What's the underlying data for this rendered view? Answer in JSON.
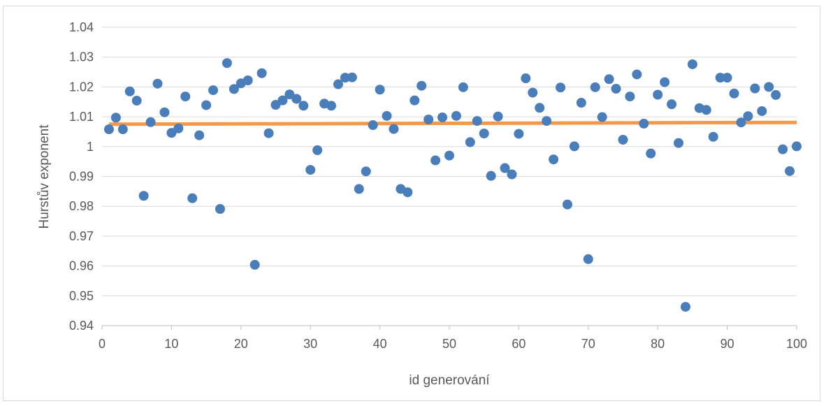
{
  "chart_data": {
    "type": "scatter",
    "xlabel": "id generování",
    "ylabel": "Hurstův exponent",
    "xlim": [
      0,
      100
    ],
    "ylim": [
      0.94,
      1.04
    ],
    "x_ticks": [
      "0",
      "10",
      "20",
      "30",
      "40",
      "50",
      "60",
      "70",
      "80",
      "90",
      "100"
    ],
    "y_ticks": [
      "0.94",
      "0.95",
      "0.96",
      "0.97",
      "0.98",
      "0.99",
      "1",
      "1.01",
      "1.02",
      "1.03",
      "1.04"
    ],
    "grid": "horizontal",
    "colors": {
      "points": "#4a7ebb",
      "trendline": "#f4984a",
      "grid": "#d9d9d9",
      "axis": "#bfbfbf",
      "text": "#595959"
    },
    "series": [
      {
        "marker": "circle",
        "x": [
          1,
          2,
          3,
          4,
          5,
          6,
          7,
          8,
          9,
          10,
          11,
          12,
          13,
          14,
          15,
          16,
          17,
          18,
          19,
          20,
          21,
          22,
          23,
          24,
          25,
          26,
          27,
          28,
          29,
          30,
          31,
          32,
          33,
          34,
          35,
          36,
          37,
          38,
          39,
          40,
          41,
          42,
          43,
          44,
          45,
          46,
          47,
          48,
          49,
          50,
          51,
          52,
          53,
          54,
          55,
          56,
          57,
          58,
          59,
          60,
          61,
          62,
          63,
          64,
          65,
          66,
          67,
          68,
          69,
          70,
          71,
          72,
          73,
          74,
          75,
          76,
          77,
          78,
          79,
          80,
          81,
          82,
          83,
          84,
          85,
          86,
          87,
          88,
          89,
          90,
          91,
          92,
          93,
          94,
          95,
          96,
          97,
          98,
          99,
          100
        ],
        "y": [
          1.0058,
          1.0097,
          1.0058,
          1.0185,
          1.0154,
          0.9835,
          1.0082,
          1.0211,
          1.0115,
          1.0046,
          1.0061,
          1.0168,
          0.9827,
          1.0038,
          1.0139,
          1.0189,
          0.9791,
          1.028,
          1.0193,
          1.0212,
          1.0222,
          0.9604,
          1.0246,
          1.0045,
          1.014,
          1.0155,
          1.0175,
          1.016,
          1.0137,
          0.9922,
          0.9988,
          1.0144,
          1.0137,
          1.0209,
          1.0231,
          1.0232,
          0.9858,
          0.9917,
          1.0072,
          1.0191,
          1.0103,
          1.0059,
          0.9858,
          0.9847,
          1.0155,
          1.0204,
          1.0091,
          0.9954,
          1.0098,
          0.997,
          1.0103,
          1.0199,
          1.0015,
          1.0086,
          1.0044,
          0.9902,
          1.0101,
          0.9928,
          0.9907,
          1.0043,
          1.0229,
          1.0181,
          1.013,
          1.0086,
          0.9957,
          1.0198,
          0.9806,
          1.0001,
          1.0147,
          0.9623,
          1.0199,
          1.0099,
          1.0226,
          1.0194,
          1.0023,
          1.0168,
          1.0242,
          1.0077,
          0.9977,
          1.0174,
          1.0216,
          1.0142,
          1.0012,
          0.9463,
          1.0276,
          1.0129,
          1.0123,
          1.0033,
          1.0231,
          1.0231,
          1.0178,
          1.0081,
          1.0102,
          1.0195,
          1.0119,
          1.02,
          1.0173,
          0.9991,
          0.9918,
          1.0001
        ]
      },
      {
        "type": "linear-trendline",
        "x": [
          1,
          100
        ],
        "y": [
          1.0075,
          1.0081
        ]
      }
    ]
  }
}
